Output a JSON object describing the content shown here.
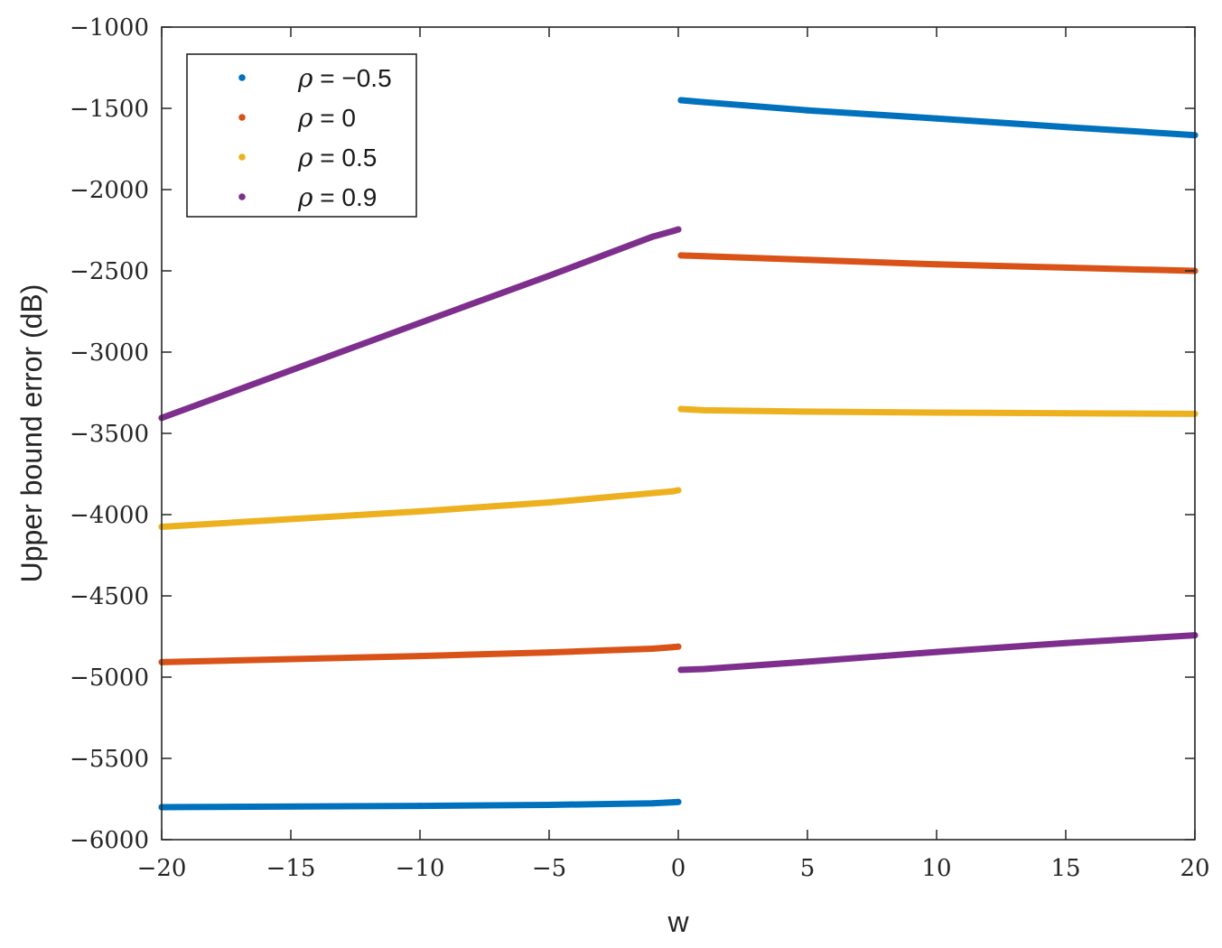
{
  "chart_data": {
    "type": "scatter",
    "title": "",
    "xlabel": "w",
    "ylabel": "Upper bound error (dB)",
    "xlim": [
      -20,
      20
    ],
    "ylim": [
      -6000,
      -1000
    ],
    "x_ticks": [
      -20,
      -15,
      -10,
      -5,
      0,
      5,
      10,
      15,
      20
    ],
    "x_tick_labels": [
      "−20",
      "−15",
      "−10",
      "−5",
      "0",
      "5",
      "10",
      "15",
      "20"
    ],
    "y_ticks": [
      -1000,
      -1500,
      -2000,
      -2500,
      -3000,
      -3500,
      -4000,
      -4500,
      -5000,
      -5500,
      -6000
    ],
    "y_tick_labels": [
      "−1000",
      "−1500",
      "−2000",
      "−2500",
      "−3000",
      "−3500",
      "−4000",
      "−4500",
      "−5000",
      "−5500",
      "−6000"
    ],
    "grid": false,
    "legend_position": "top-left",
    "series": [
      {
        "name": "ρ = −0.5",
        "rho_label": "ρ",
        "value_label": " = −0.5",
        "color": "#0072BD",
        "x": [
          -20,
          -10,
          -5,
          -1,
          -0.2,
          0,
          0.1,
          1,
          5,
          10,
          15,
          20
        ],
        "y": [
          -5800,
          -5792,
          -5786,
          -5776,
          -5770,
          -5768,
          -1450,
          -1462,
          -1512,
          -1562,
          -1615,
          -1665
        ]
      },
      {
        "name": "ρ = 0",
        "rho_label": "ρ",
        "value_label": " = 0",
        "color": "#D95319",
        "x": [
          -20,
          -10,
          -5,
          -1,
          -0.2,
          0,
          0.1,
          1,
          5,
          10,
          15,
          20
        ],
        "y": [
          -4908,
          -4870,
          -4848,
          -4825,
          -4815,
          -4812,
          -2405,
          -2410,
          -2432,
          -2460,
          -2480,
          -2500
        ]
      },
      {
        "name": "ρ = 0.5",
        "rho_label": "ρ",
        "value_label": " = 0.5",
        "color": "#EDB120",
        "x": [
          -20,
          -10,
          -5,
          -1,
          -0.2,
          0,
          0.1,
          1,
          5,
          10,
          15,
          20
        ],
        "y": [
          -4075,
          -3980,
          -3925,
          -3868,
          -3856,
          -3850,
          -3350,
          -3358,
          -3366,
          -3372,
          -3376,
          -3380
        ]
      },
      {
        "name": "ρ = 0.9",
        "rho_label": "ρ",
        "value_label": " = 0.9",
        "color": "#7E2F8E",
        "x": [
          -20,
          -10,
          -5,
          -1,
          -0.2,
          0,
          0.1,
          1,
          5,
          10,
          15,
          20
        ],
        "y": [
          -3405,
          -2820,
          -2530,
          -2290,
          -2255,
          -2245,
          -4955,
          -4950,
          -4905,
          -4845,
          -4790,
          -4742
        ]
      }
    ]
  }
}
